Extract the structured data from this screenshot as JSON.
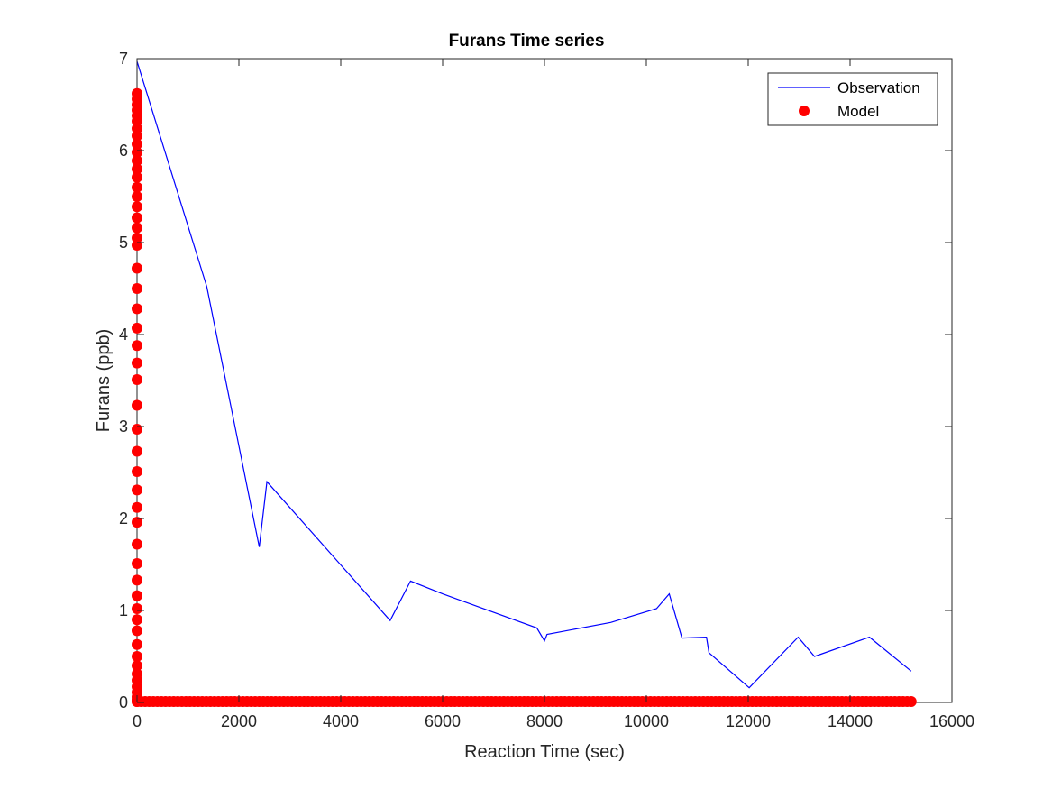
{
  "chart_data": {
    "type": "line",
    "title": "Furans Time series",
    "xlabel": "Reaction Time (sec)",
    "ylabel": "Furans (ppb)",
    "xlim": [
      0,
      16000
    ],
    "ylim": [
      0,
      7
    ],
    "xticks": [
      0,
      2000,
      4000,
      6000,
      8000,
      10000,
      12000,
      14000,
      16000
    ],
    "yticks": [
      0,
      1,
      2,
      3,
      4,
      5,
      6,
      7
    ],
    "grid": false,
    "legend_position": "top-right",
    "series": [
      {
        "name": "Observation",
        "kind": "line",
        "color": "#0000ff",
        "x": [
          0,
          1370,
          2400,
          2550,
          4970,
          5370,
          6000,
          7850,
          8000,
          8050,
          9300,
          10200,
          10450,
          10700,
          11180,
          11230,
          12020,
          12980,
          13300,
          14380,
          15200
        ],
        "y": [
          6.97,
          4.52,
          1.69,
          2.4,
          0.89,
          1.32,
          1.18,
          0.81,
          0.67,
          0.74,
          0.87,
          1.02,
          1.18,
          0.7,
          0.71,
          0.54,
          0.16,
          0.71,
          0.5,
          0.71,
          0.34
        ]
      },
      {
        "name": "Model",
        "kind": "scatter",
        "color": "#ff0000",
        "vertical_cluster": {
          "x": 0,
          "y": [
            6.62,
            6.56,
            6.5,
            6.44,
            6.38,
            6.32,
            6.24,
            6.16,
            6.07,
            5.98,
            5.89,
            5.8,
            5.71,
            5.6,
            5.5,
            5.39,
            5.27,
            5.16,
            5.05,
            4.97,
            4.72,
            4.5,
            4.28,
            4.07,
            3.88,
            3.69,
            3.51,
            3.23,
            2.97,
            2.73,
            2.51,
            2.31,
            2.12,
            1.96,
            1.72,
            1.51,
            1.33,
            1.16,
            1.02,
            0.9,
            0.78,
            0.63,
            0.5,
            0.4,
            0.31,
            0.24,
            0.17,
            0.11,
            0.06,
            0.03,
            0.01
          ]
        },
        "baseline": {
          "y": 0.01,
          "x_start": 0,
          "x_end": 15200,
          "x_step": 80
        }
      }
    ]
  }
}
